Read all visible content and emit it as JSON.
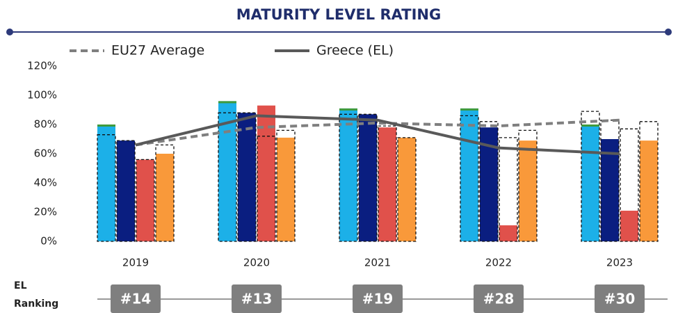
{
  "chart_data": {
    "type": "bar",
    "title": "MATURITY LEVEL RATING",
    "categories": [
      "2019",
      "2020",
      "2021",
      "2022",
      "2023"
    ],
    "series": [
      {
        "color": "#1cb0e8",
        "cap_color": "#3f9a3c",
        "values": [
          80,
          96,
          91,
          91,
          80
        ],
        "eu27_values": [
          73,
          88,
          87,
          86,
          89
        ]
      },
      {
        "color": "#0a1e80",
        "values": [
          69,
          88,
          87,
          78,
          70
        ],
        "eu27_values": [
          69,
          88,
          87,
          82,
          83
        ]
      },
      {
        "color": "#e0514b",
        "values": [
          56,
          93,
          78,
          11,
          21
        ],
        "eu27_values": [
          56,
          72,
          79,
          71,
          77
        ]
      },
      {
        "color": "#f9993a",
        "values": [
          60,
          71,
          71,
          69,
          69
        ],
        "eu27_values": [
          66,
          76,
          71,
          76,
          82
        ]
      }
    ],
    "lines": [
      {
        "name": "EU27 Average",
        "color": "#7f7f7f",
        "dashed": true,
        "values": [
          66,
          78,
          81,
          79,
          83
        ]
      },
      {
        "name": "Greece (EL)",
        "color": "#595959",
        "dashed": false,
        "values": [
          66,
          86,
          83,
          64,
          60
        ]
      }
    ],
    "ylim": [
      0,
      120
    ],
    "yticks": [
      {
        "value": 0,
        "label": "0%"
      },
      {
        "value": 20,
        "label": "20%"
      },
      {
        "value": 40,
        "label": "40%"
      },
      {
        "value": 60,
        "label": "60%"
      },
      {
        "value": 80,
        "label": "80%"
      },
      {
        "value": 100,
        "label": "100%"
      },
      {
        "value": 120,
        "label": "120%"
      }
    ],
    "grid": false,
    "ranking_label": "EL Ranking",
    "rankings": [
      "#14",
      "#13",
      "#19",
      "#28",
      "#30"
    ]
  }
}
